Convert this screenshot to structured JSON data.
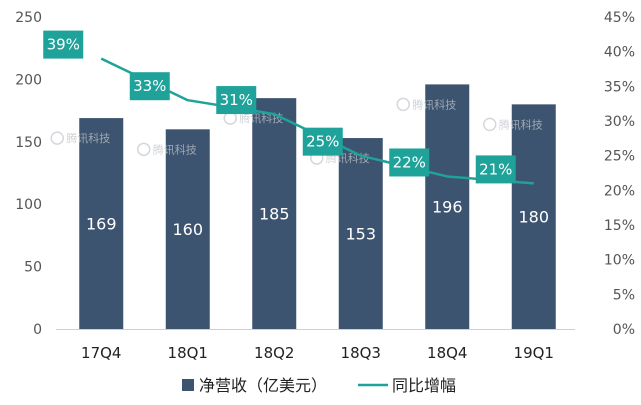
{
  "chart_data": {
    "type": "bar",
    "categories": [
      "17Q4",
      "18Q1",
      "18Q2",
      "18Q3",
      "18Q4",
      "19Q1"
    ],
    "series": [
      {
        "name": "净营收（亿美元）",
        "type": "bar",
        "axis": "left",
        "values": [
          169,
          160,
          185,
          153,
          196,
          180
        ],
        "value_labels": [
          "169",
          "160",
          "185",
          "153",
          "196",
          "180"
        ],
        "color": "#3d5470"
      },
      {
        "name": "同比增幅",
        "type": "line",
        "axis": "right",
        "values": [
          39,
          33,
          31,
          25,
          22,
          21
        ],
        "value_labels": [
          "39%",
          "33%",
          "31%",
          "25%",
          "22%",
          "21%"
        ],
        "color": "#1fa29a"
      }
    ],
    "y_left": {
      "ylim": [
        0,
        250
      ],
      "ticks": [
        0,
        50,
        100,
        150,
        200,
        250
      ],
      "tick_labels": [
        "0",
        "50",
        "100",
        "150",
        "200",
        "250"
      ]
    },
    "y_right": {
      "ylim": [
        0,
        45
      ],
      "ticks": [
        0,
        5,
        10,
        15,
        20,
        25,
        30,
        35,
        40,
        45
      ],
      "tick_labels": [
        "0%",
        "5%",
        "10%",
        "15%",
        "20%",
        "25%",
        "30%",
        "35%",
        "40%",
        "45%"
      ]
    },
    "grid": false,
    "legend": {
      "position": "bottom",
      "entries": [
        "净营收（亿美元）",
        "同比增幅"
      ]
    },
    "watermark": "腾讯科技"
  }
}
